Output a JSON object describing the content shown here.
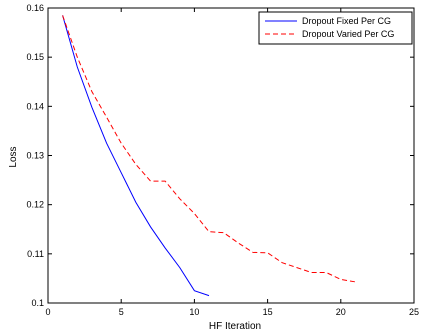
{
  "chart_data": {
    "type": "line",
    "title": "",
    "xlabel": "HF Iteration",
    "ylabel": "Loss",
    "xlim": [
      0,
      25
    ],
    "ylim": [
      0.1,
      0.16
    ],
    "xticks": [
      0,
      5,
      10,
      15,
      20,
      25
    ],
    "yticks": [
      0.1,
      0.11,
      0.12,
      0.13,
      0.14,
      0.15,
      0.16
    ],
    "xtick_labels": [
      "0",
      "5",
      "10",
      "15",
      "20",
      "25"
    ],
    "ytick_labels": [
      "0.1",
      "0.11",
      "0.12",
      "0.13",
      "0.14",
      "0.15",
      "0.16"
    ],
    "grid": false,
    "legend_position": "top-right",
    "series": [
      {
        "name": "Dropout Fixed Per CG",
        "color": "#0000ff",
        "line_style": "solid",
        "x": [
          1,
          2,
          3,
          4,
          5,
          6,
          7,
          8,
          9,
          10,
          11
        ],
        "y": [
          0.1585,
          0.148,
          0.1398,
          0.1325,
          0.1265,
          0.1205,
          0.1155,
          0.1112,
          0.1072,
          0.1025,
          0.1015
        ]
      },
      {
        "name": "Dropout Varied Per CG",
        "color": "#ff0000",
        "line_style": "dashed",
        "x": [
          1,
          2,
          3,
          4,
          5,
          6,
          7,
          8,
          9,
          10,
          11,
          12,
          13,
          14,
          15,
          16,
          17,
          18,
          19,
          20,
          21
        ],
        "y": [
          0.1585,
          0.15,
          0.143,
          0.1378,
          0.1325,
          0.1282,
          0.1248,
          0.1248,
          0.1212,
          0.1182,
          0.1145,
          0.1143,
          0.1122,
          0.1103,
          0.1102,
          0.1082,
          0.1072,
          0.1062,
          0.1062,
          0.1048,
          0.1043
        ]
      }
    ]
  }
}
